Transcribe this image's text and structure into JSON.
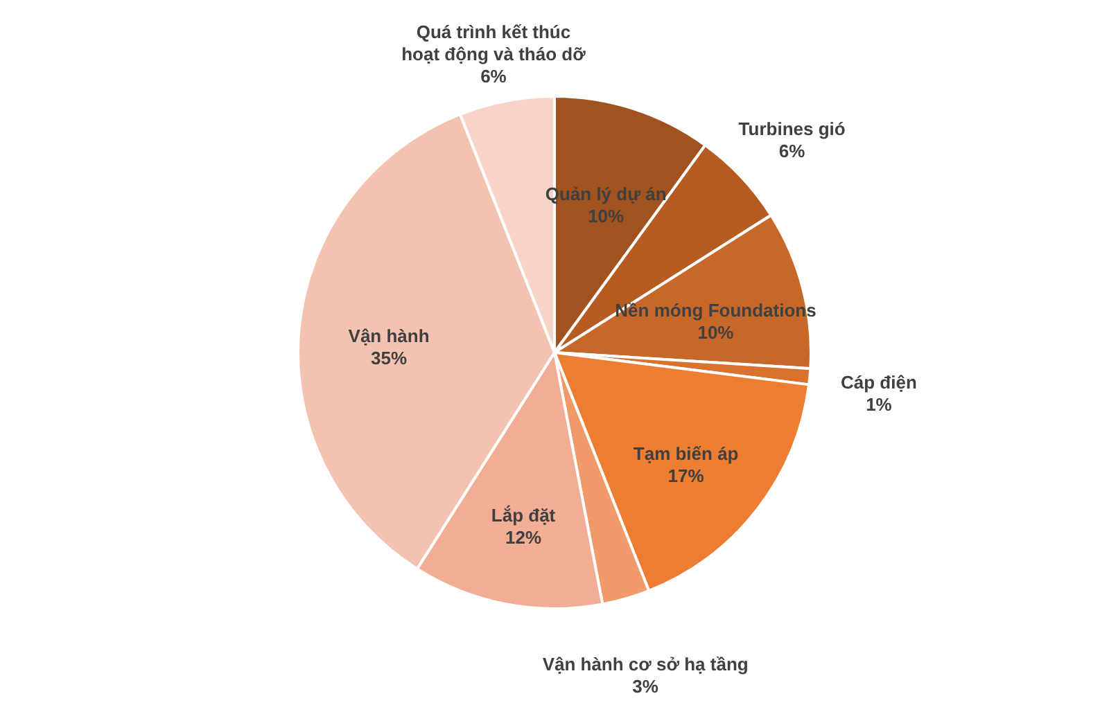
{
  "chart_data": {
    "type": "pie",
    "categories": [
      "Quản lý dự án",
      "Turbines gió",
      "Nền móng Foundations",
      "Cáp điện",
      "Tạm biến áp",
      "Vận hành cơ sở hạ tầng",
      "Lắp đặt",
      "Vận hành",
      "Quá trình kết thúc hoạt động và tháo dỡ"
    ],
    "values": [
      10,
      6,
      10,
      1,
      17,
      3,
      12,
      35,
      6
    ],
    "colors": [
      "#a0521f",
      "#b65b22",
      "#c8672a",
      "#d8722e",
      "#ed7d31",
      "#f09a6a",
      "#f2ae94",
      "#f4c2b0",
      "#f8d4c8"
    ],
    "value_labels": [
      "10%",
      "6%",
      "10%",
      "1%",
      "17%",
      "3%",
      "12%",
      "35%",
      "6%"
    ]
  }
}
